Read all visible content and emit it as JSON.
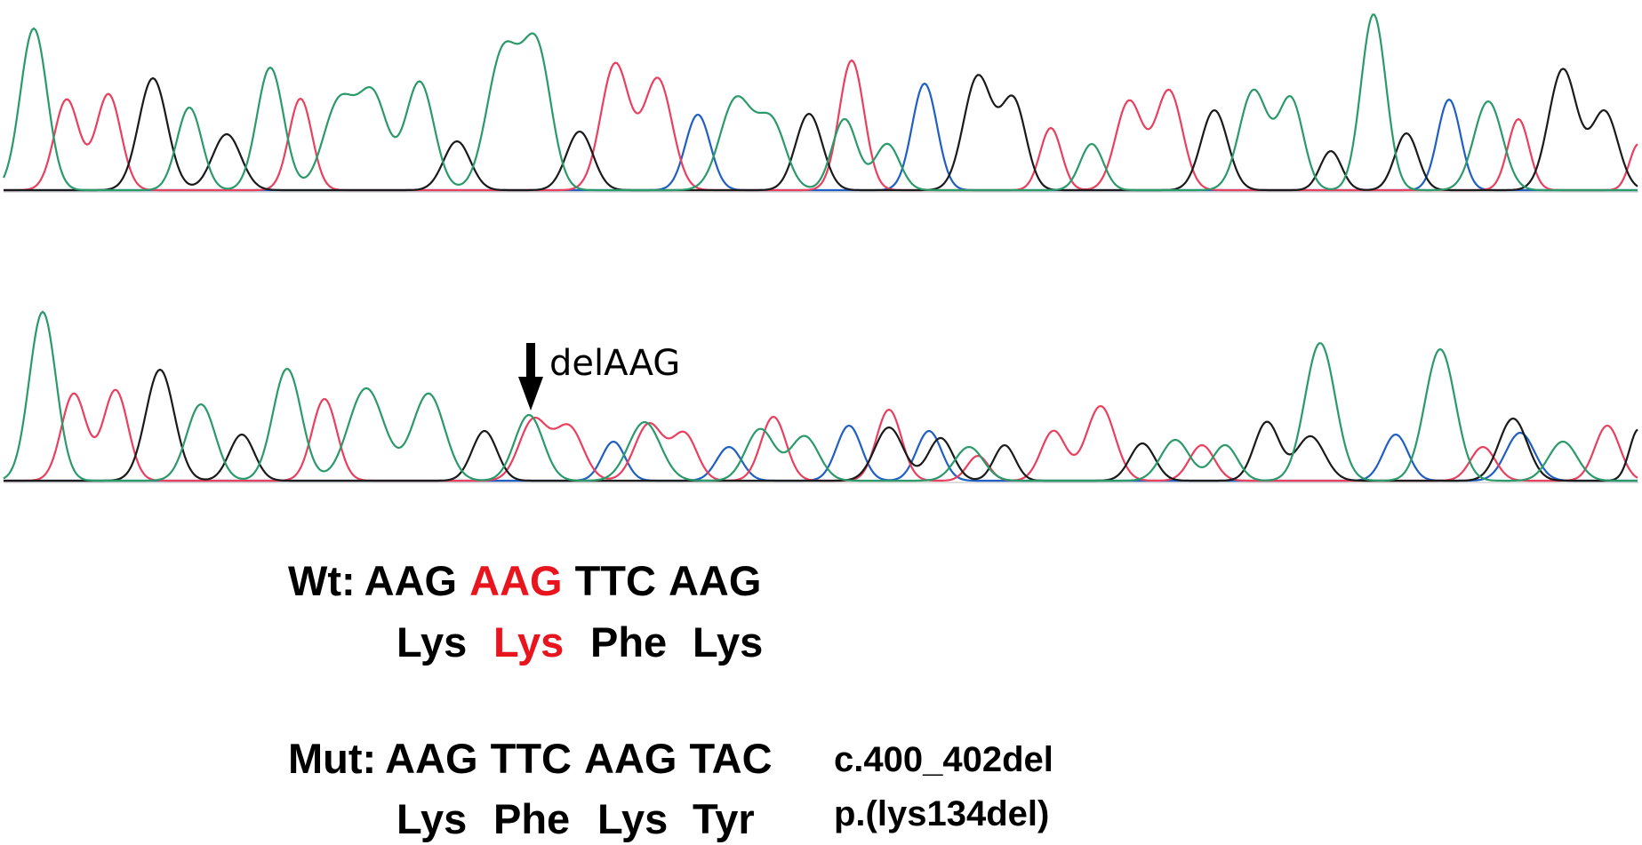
{
  "colors": {
    "A": "#2a9a6a",
    "G": "#1a1a1a",
    "T": "#e8405e",
    "C": "#1f5fc4",
    "highlight": "#e8141e"
  },
  "annotation": {
    "label": "delAAG"
  },
  "wildtype": {
    "label": "Wt:",
    "codons": [
      {
        "text": "AAG",
        "highlight": false
      },
      {
        "text": "AAG",
        "highlight": true
      },
      {
        "text": "TTC",
        "highlight": false
      },
      {
        "text": "AAG",
        "highlight": false
      }
    ],
    "aminoacids": [
      {
        "text": "Lys",
        "highlight": false
      },
      {
        "text": "Lys",
        "highlight": true
      },
      {
        "text": "Phe",
        "highlight": false
      },
      {
        "text": "Lys",
        "highlight": false
      }
    ]
  },
  "mutant": {
    "label": "Mut:",
    "codons": [
      {
        "text": "AAG",
        "highlight": false
      },
      {
        "text": "TTC",
        "highlight": false
      },
      {
        "text": "AAG",
        "highlight": false
      },
      {
        "text": "TAC",
        "highlight": false
      }
    ],
    "aminoacids": [
      {
        "text": "Lys",
        "highlight": false
      },
      {
        "text": "Phe",
        "highlight": false
      },
      {
        "text": "Lys",
        "highlight": false
      },
      {
        "text": "Tyr",
        "highlight": false
      }
    ],
    "cdna": "c.400_402del",
    "protein": "p.(lys134del)"
  }
}
